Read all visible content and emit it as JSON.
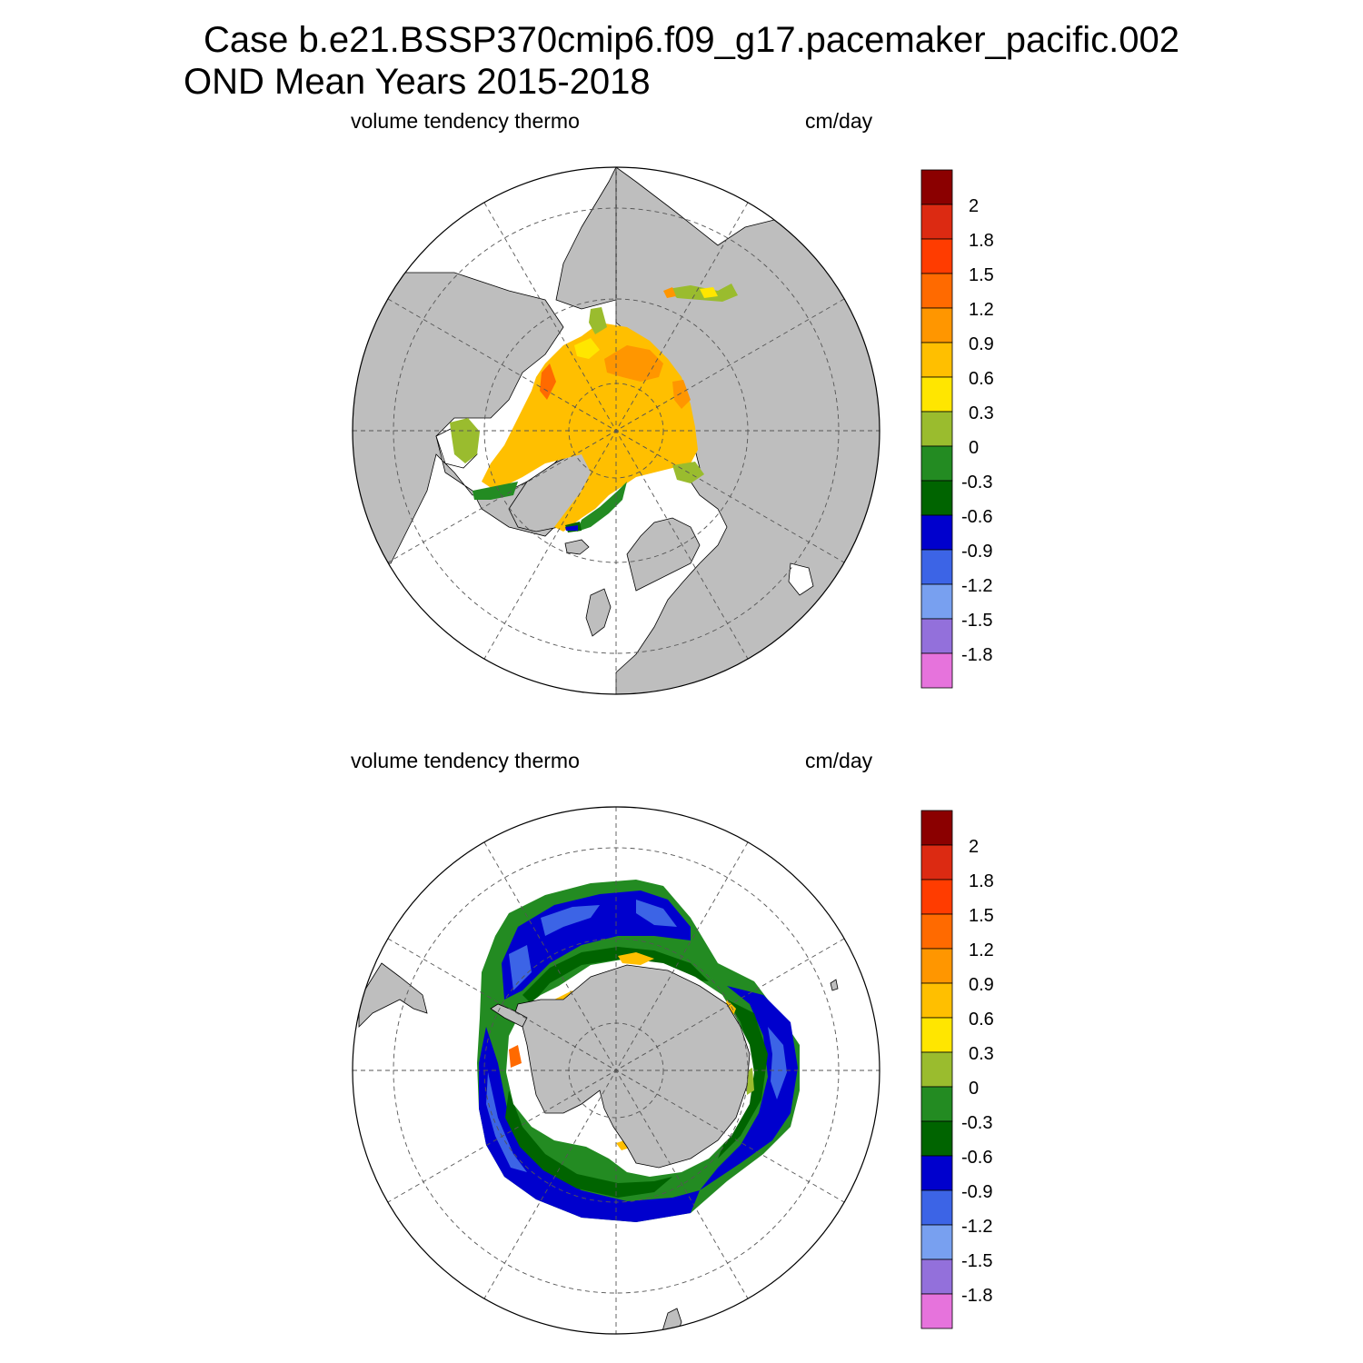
{
  "header": {
    "title_line1": "Case b.e21.BSSP370cmip6.f09_g17.pacemaker_pacific.002",
    "title_line2": "OND Mean   Years 2015-2018"
  },
  "panels": [
    {
      "id": "north",
      "left_label": "volume tendency thermo",
      "right_label": "cm/day",
      "hemisphere": "northern polar stereographic"
    },
    {
      "id": "south",
      "left_label": "volume tendency thermo",
      "right_label": "cm/day",
      "hemisphere": "southern polar stereographic"
    }
  ],
  "colorbar": {
    "labels": [
      "2",
      "1.8",
      "1.5",
      "1.2",
      "0.9",
      "0.6",
      "0.3",
      "0",
      "-0.3",
      "-0.6",
      "-0.9",
      "-1.2",
      "-1.5",
      "-1.8"
    ],
    "colors": [
      "#8b0000",
      "#dc2a12",
      "#ff3c00",
      "#ff6a00",
      "#ff9600",
      "#ffbf00",
      "#ffe600",
      "#9abc2e",
      "#238b22",
      "#006400",
      "#0000cd",
      "#3c64e6",
      "#78a0f0",
      "#9370db",
      "#e673dc"
    ]
  },
  "colors": {
    "land": "#bebebe",
    "ocean": "#ffffff",
    "grid": "#555555"
  }
}
